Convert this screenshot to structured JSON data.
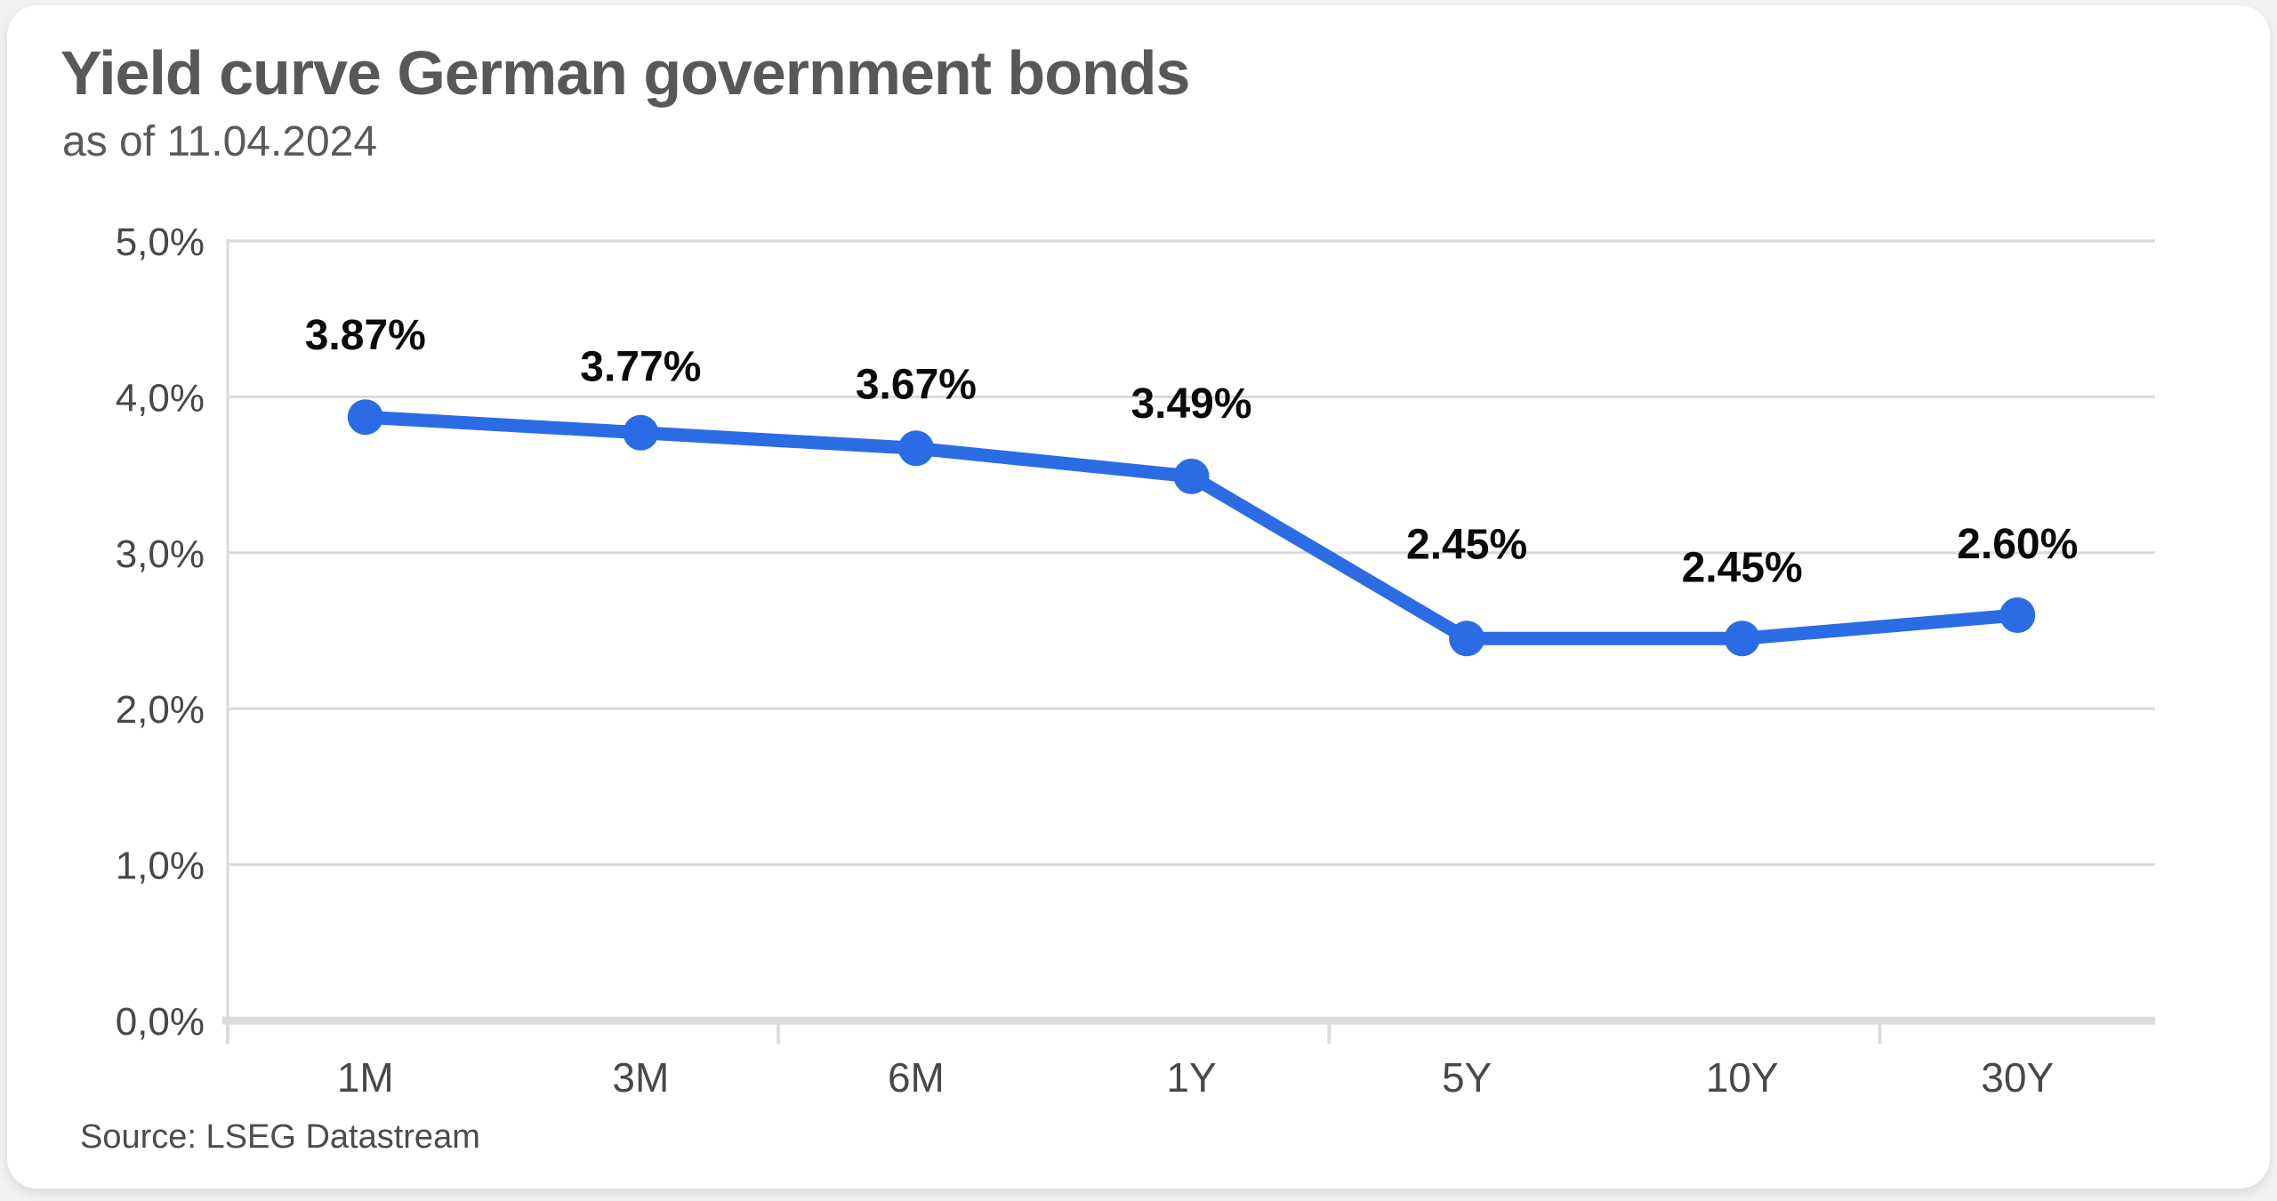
{
  "header": {
    "title": "Yield curve German government bonds",
    "subtitle": "as of 11.04.2024"
  },
  "footer": {
    "source": "Source: LSEG Datastream"
  },
  "chart_data": {
    "type": "line",
    "title": "Yield curve German government bonds",
    "subtitle": "as of 11.04.2024",
    "categories": [
      "1M",
      "3M",
      "6M",
      "1Y",
      "5Y",
      "10Y",
      "30Y"
    ],
    "values": [
      3.87,
      3.77,
      3.67,
      3.49,
      2.45,
      2.45,
      2.6
    ],
    "data_labels": [
      "3.87%",
      "3.77%",
      "3.67%",
      "3.49%",
      "2.45%",
      "2.45%",
      "2.60%"
    ],
    "yticks": [
      0,
      1,
      2,
      3,
      4,
      5
    ],
    "ytick_labels": [
      "0,0%",
      "1,0%",
      "2,0%",
      "3,0%",
      "4,0%",
      "5,0%"
    ],
    "ylim": [
      0,
      5
    ],
    "xlabel": "",
    "ylabel": "",
    "grid": true,
    "legend": false,
    "colors": {
      "line": "#2b6ce5",
      "marker": "#2b6ce5",
      "gridline": "#dadada",
      "baseline": "#dcdcdc",
      "axis_text": "#48484a",
      "data_label_text": "#0a0a0a"
    },
    "source": "Source: LSEG Datastream"
  }
}
